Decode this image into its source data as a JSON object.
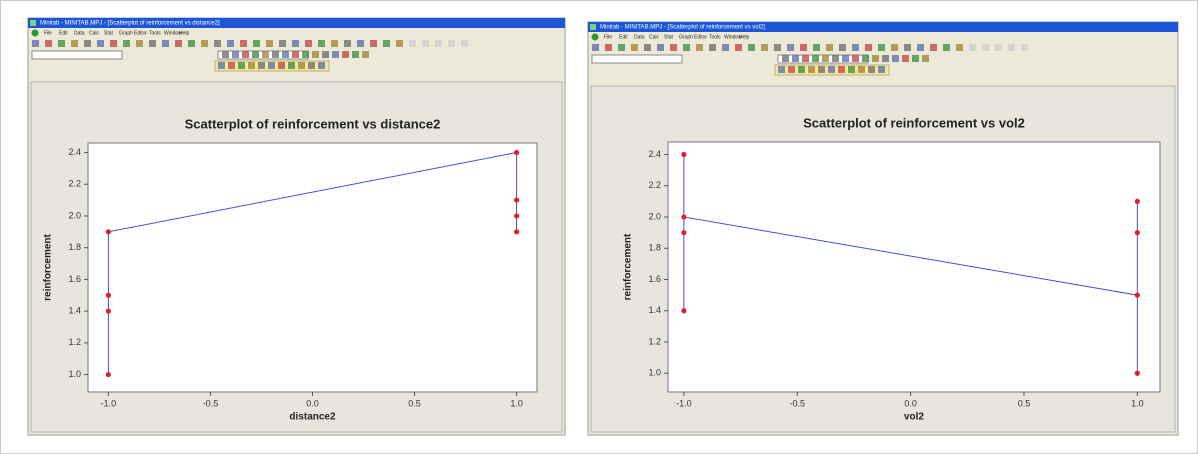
{
  "windows": [
    {
      "title": "Minitab - MINITAB.MPJ - [Scatterplot of reinforcement vs distance2]",
      "menu": [
        "File",
        "Edit",
        "Data",
        "Calc",
        "Stat",
        "Graph",
        "Editor",
        "Tools",
        "Window",
        "Help"
      ]
    },
    {
      "title": "Minitab - MINITAB.MPJ - [Scatterplot of reinforcement vs vol2]",
      "menu": [
        "File",
        "Edit",
        "Data",
        "Calc",
        "Stat",
        "Graph",
        "Editor",
        "Tools",
        "Window",
        "Help"
      ]
    }
  ],
  "chart_data": [
    {
      "type": "scatter",
      "title": "Scatterplot of reinforcement vs distance2",
      "x_label": "distance2",
      "y_label": "reinforcement",
      "x": [
        -1,
        -1,
        -1,
        -1,
        1,
        1,
        1,
        1
      ],
      "values": [
        1.0,
        1.4,
        1.5,
        1.9,
        2.4,
        2.1,
        2.0,
        1.9
      ],
      "color": "#e0202a",
      "line_color": "#4a4ae0",
      "connect": true,
      "xlim": [
        -1.1,
        1.1
      ],
      "ylim": [
        0.89,
        2.46
      ],
      "xticks": [
        {
          "value": -1,
          "label": "-1.0"
        },
        -0.5,
        {
          "value": 0,
          "label": "0.0"
        },
        0.5,
        {
          "value": 1,
          "label": "1.0"
        }
      ],
      "yticks": [
        {
          "value": 1,
          "label": "1.0"
        },
        1.2,
        1.4,
        1.6,
        1.8,
        {
          "value": 2,
          "label": "2.0"
        },
        2.2,
        2.4
      ]
    },
    {
      "type": "scatter",
      "title": "Scatterplot of reinforcement vs vol2",
      "x_label": "vol2",
      "y_label": "reinforcement",
      "x": [
        -1,
        -1,
        -1,
        -1,
        1,
        1,
        1,
        1
      ],
      "values": [
        1.4,
        1.9,
        2.4,
        2.0,
        1.5,
        2.1,
        1.0,
        1.9
      ],
      "color": "#e0202a",
      "line_color": "#4a4ae0",
      "connect": true,
      "xlim": [
        -1.07,
        1.1
      ],
      "ylim": [
        0.88,
        2.48
      ],
      "xticks": [
        {
          "value": -1,
          "label": "-1.0"
        },
        -0.5,
        {
          "value": 0,
          "label": "0.0"
        },
        0.5,
        {
          "value": 1,
          "label": "1.0"
        }
      ],
      "yticks": [
        {
          "value": 1,
          "label": "1.0"
        },
        1.2,
        1.4,
        1.6,
        1.8,
        {
          "value": 2,
          "label": "2.0"
        },
        2.2,
        2.4
      ]
    }
  ]
}
